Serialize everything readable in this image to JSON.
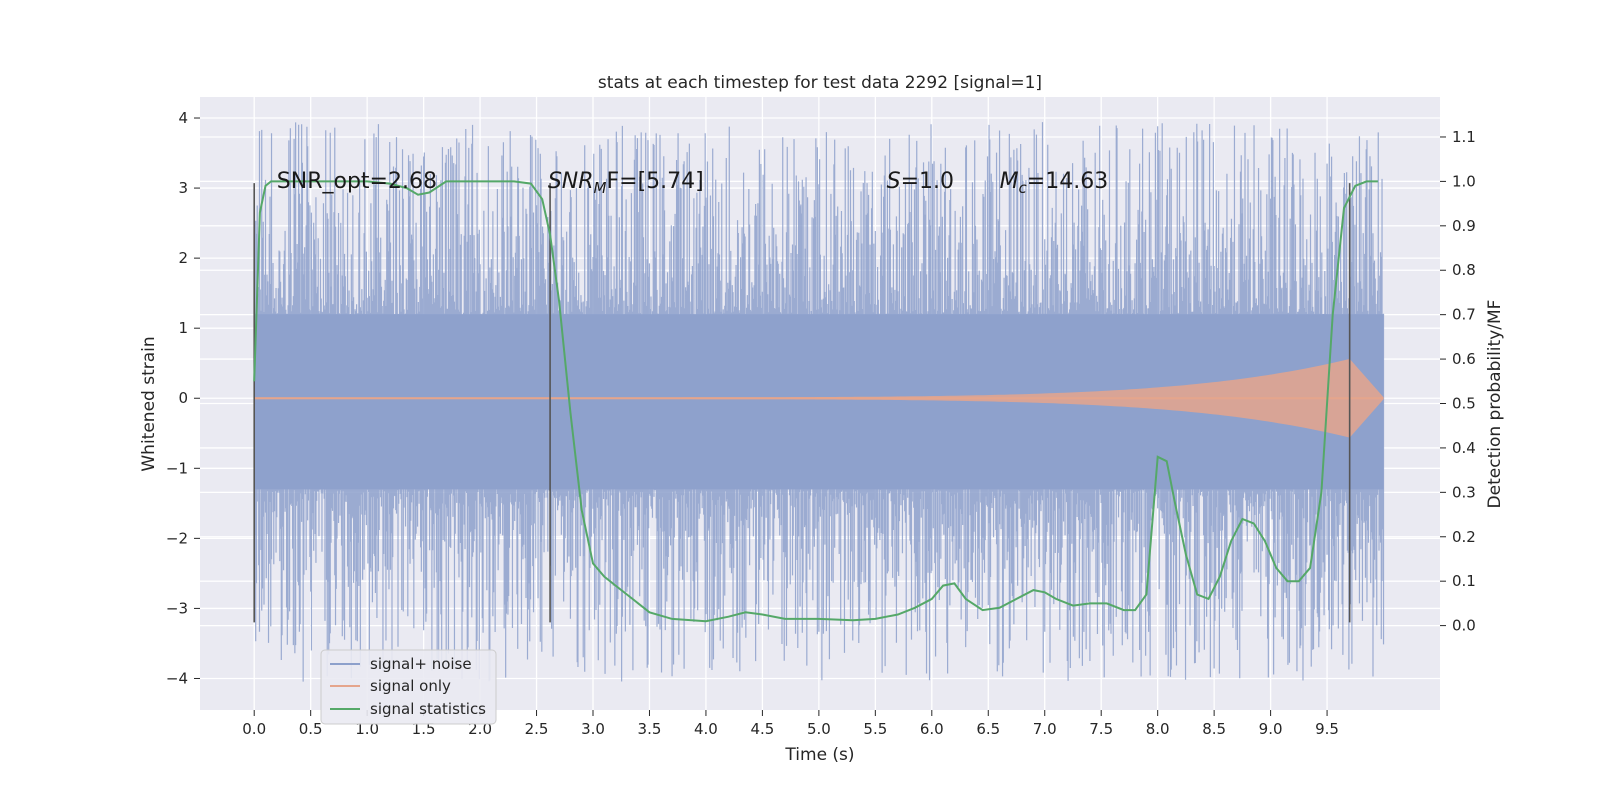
{
  "chart_data": {
    "type": "line",
    "title": "stats at each timestep for test data 2292 [signal=1]",
    "xlabel": "Time (s)",
    "ylabel": "Whitened strain",
    "y2label": "Detection probability/MF",
    "xlim": [
      -0.48,
      10.5
    ],
    "ylim": [
      -4.45,
      4.3
    ],
    "y2lim": [
      -0.19,
      1.19
    ],
    "x_ticks": [
      0.0,
      0.5,
      1.0,
      1.5,
      2.0,
      2.5,
      3.0,
      3.5,
      4.0,
      4.5,
      5.0,
      5.5,
      6.0,
      6.5,
      7.0,
      7.5,
      8.0,
      8.5,
      9.0,
      9.5
    ],
    "x_tick_labels": [
      "0.0",
      "0.5",
      "1.0",
      "1.5",
      "2.0",
      "2.5",
      "3.0",
      "3.5",
      "4.0",
      "4.5",
      "5.0",
      "5.5",
      "6.0",
      "6.5",
      "7.0",
      "7.5",
      "8.0",
      "8.5",
      "9.0",
      "9.5"
    ],
    "y_ticks": [
      -4,
      -3,
      -2,
      -1,
      0,
      1,
      2,
      3,
      4
    ],
    "y_tick_labels": [
      "−4",
      "−3",
      "−2",
      "−1",
      "0",
      "1",
      "2",
      "3",
      "4"
    ],
    "y2_ticks": [
      0.0,
      0.1,
      0.2,
      0.3,
      0.4,
      0.5,
      0.6,
      0.7,
      0.8,
      0.9,
      1.0,
      1.1
    ],
    "y2_tick_labels": [
      "0.0",
      "0.1",
      "0.2",
      "0.3",
      "0.4",
      "0.5",
      "0.6",
      "0.7",
      "0.8",
      "0.9",
      "1.0",
      "1.1"
    ],
    "grid": true,
    "legend_position": "lower-left",
    "colors": {
      "noise": "#8da0cb",
      "signal": "#e5a58c",
      "stats": "#55a868",
      "background": "#eaeaf2",
      "grid": "#ffffff",
      "marker": "#555555"
    },
    "series": [
      {
        "name": "signal+ noise",
        "axis": "left",
        "style": "noise_band",
        "x_range": [
          0.0,
          10.0
        ],
        "core_range": [
          -1.3,
          1.2
        ],
        "extreme_range": [
          -4.05,
          3.95
        ]
      },
      {
        "name": "signal only",
        "axis": "left",
        "style": "chirp",
        "x_range": [
          0.0,
          9.7
        ],
        "peak_amplitude": 0.55
      },
      {
        "name": "signal statistics",
        "axis": "right",
        "x": [
          0.0,
          0.05,
          0.1,
          0.15,
          0.2,
          0.3,
          0.5,
          0.8,
          1.0,
          1.2,
          1.35,
          1.45,
          1.55,
          1.7,
          2.0,
          2.3,
          2.45,
          2.55,
          2.62,
          2.7,
          2.8,
          2.9,
          3.0,
          3.1,
          3.2,
          3.35,
          3.5,
          3.7,
          4.0,
          4.2,
          4.35,
          4.5,
          4.7,
          5.0,
          5.3,
          5.5,
          5.7,
          5.85,
          6.0,
          6.1,
          6.2,
          6.3,
          6.45,
          6.6,
          6.75,
          6.9,
          7.0,
          7.1,
          7.25,
          7.4,
          7.55,
          7.7,
          7.8,
          7.9,
          8.0,
          8.08,
          8.15,
          8.25,
          8.35,
          8.45,
          8.55,
          8.65,
          8.75,
          8.85,
          8.95,
          9.05,
          9.15,
          9.25,
          9.35,
          9.45,
          9.55,
          9.65,
          9.75,
          9.85,
          9.95
        ],
        "y": [
          0.55,
          0.93,
          0.99,
          1.0,
          1.0,
          1.0,
          1.0,
          1.0,
          1.0,
          0.995,
          0.985,
          0.97,
          0.975,
          1.0,
          1.0,
          1.0,
          0.995,
          0.96,
          0.88,
          0.73,
          0.48,
          0.26,
          0.14,
          0.11,
          0.09,
          0.06,
          0.03,
          0.015,
          0.01,
          0.02,
          0.03,
          0.025,
          0.015,
          0.015,
          0.012,
          0.015,
          0.025,
          0.04,
          0.06,
          0.09,
          0.095,
          0.06,
          0.035,
          0.04,
          0.06,
          0.08,
          0.075,
          0.06,
          0.045,
          0.05,
          0.05,
          0.035,
          0.035,
          0.07,
          0.38,
          0.37,
          0.28,
          0.16,
          0.07,
          0.06,
          0.11,
          0.19,
          0.24,
          0.23,
          0.19,
          0.13,
          0.1,
          0.1,
          0.13,
          0.3,
          0.7,
          0.94,
          0.99,
          1.0,
          1.0
        ]
      }
    ],
    "vertical_markers": [
      0.0,
      2.62,
      9.7
    ],
    "vertical_marker_range": [
      -3.2,
      3.07
    ],
    "annotations": [
      {
        "id": "snr-opt",
        "text": "SNR_opt=2.68",
        "x": 0.2,
        "y": 3.0
      },
      {
        "id": "snr-mf",
        "base": "SNR",
        "sub": "M",
        "rest": "F=[5.74]",
        "x": 2.6,
        "y": 3.0
      },
      {
        "id": "s-value",
        "base": "S",
        "rest": "=1.0",
        "x": 5.6,
        "y": 3.0
      },
      {
        "id": "mc-value",
        "base": "M",
        "sub": "c",
        "rest": "=14.63",
        "x": 6.6,
        "y": 3.0
      }
    ]
  }
}
